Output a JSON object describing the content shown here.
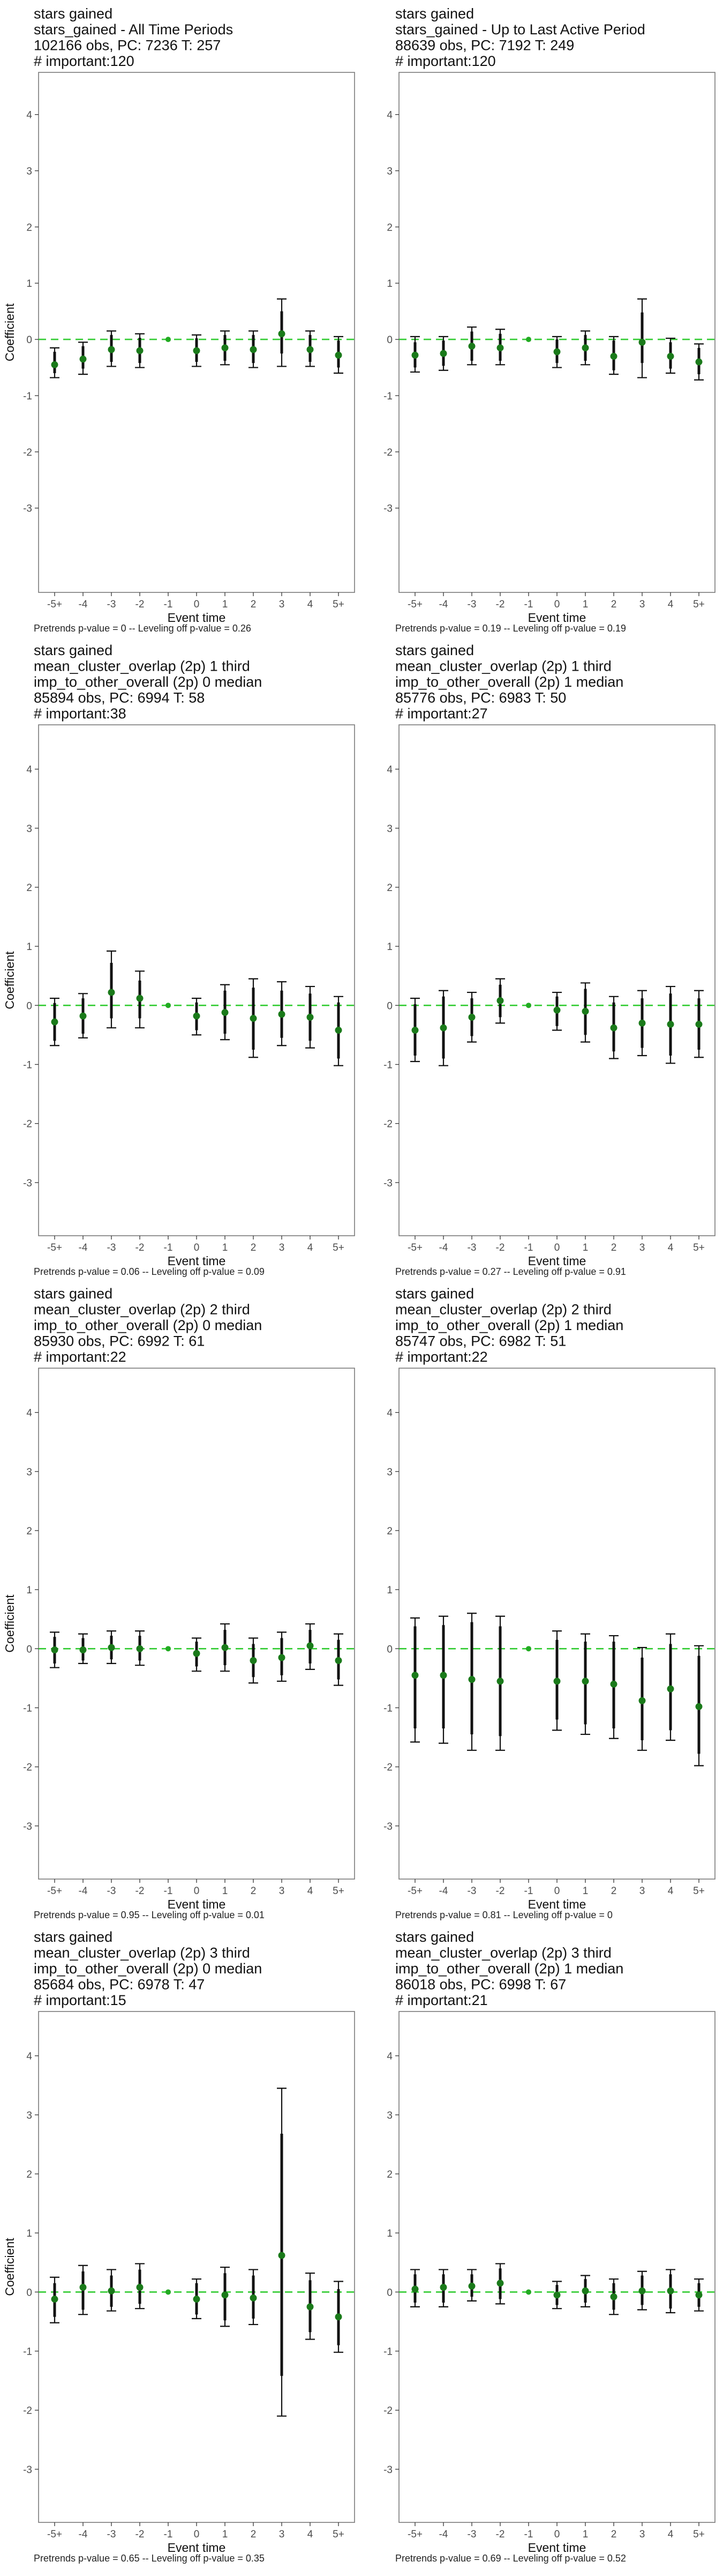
{
  "chart_data": [
    {
      "type": "errorbar",
      "title_lines": [
        "stars gained",
        "stars_gained - All Time Periods",
        "102166 obs, PC: 7236 T: 257",
        "# important:120"
      ],
      "caption": "Pretrends p-value = 0 -- Leveling off p-value = 0.26",
      "xlabel": "Event time",
      "ylabel": "Coefficient",
      "categories": [
        "-5+",
        "-4",
        "-3",
        "-2",
        "-1",
        "0",
        "1",
        "2",
        "3",
        "4",
        "5+"
      ],
      "ylim": [
        -4.5,
        4.75
      ],
      "yticks": [
        -3,
        -2,
        -1,
        0,
        1,
        2,
        3,
        4
      ],
      "series": [
        {
          "estimate": [
            -0.45,
            -0.35,
            -0.18,
            -0.2,
            0,
            -0.2,
            -0.15,
            -0.18,
            0.1,
            -0.18,
            -0.28
          ],
          "ci95_low": [
            -0.68,
            -0.62,
            -0.48,
            -0.5,
            0,
            -0.48,
            -0.45,
            -0.5,
            -0.48,
            -0.48,
            -0.6
          ],
          "ci95_high": [
            -0.15,
            -0.05,
            0.15,
            0.1,
            0,
            0.08,
            0.15,
            0.15,
            0.72,
            0.15,
            0.05
          ],
          "ci90_low": [
            -0.6,
            -0.52,
            -0.4,
            -0.42,
            0,
            -0.4,
            -0.38,
            -0.42,
            -0.25,
            -0.4,
            -0.5
          ],
          "ci90_high": [
            -0.22,
            -0.12,
            0.08,
            0.03,
            0,
            0.02,
            0.08,
            0.08,
            0.5,
            0.08,
            -0.02
          ]
        }
      ]
    },
    {
      "type": "errorbar",
      "title_lines": [
        "stars gained",
        "stars_gained - Up to Last Active Period",
        "88639 obs, PC: 7192 T: 249",
        "# important:120"
      ],
      "caption": "Pretrends p-value = 0.19 -- Leveling off p-value = 0.19",
      "xlabel": "Event time",
      "ylabel": "",
      "categories": [
        "-5+",
        "-4",
        "-3",
        "-2",
        "-1",
        "0",
        "1",
        "2",
        "3",
        "4",
        "5+"
      ],
      "ylim": [
        -4.5,
        4.75
      ],
      "yticks": [
        -3,
        -2,
        -1,
        0,
        1,
        2,
        3,
        4
      ],
      "series": [
        {
          "estimate": [
            -0.28,
            -0.25,
            -0.12,
            -0.15,
            0,
            -0.22,
            -0.15,
            -0.3,
            -0.05,
            -0.3,
            -0.4
          ],
          "ci95_low": [
            -0.58,
            -0.55,
            -0.45,
            -0.45,
            0,
            -0.5,
            -0.45,
            -0.62,
            -0.68,
            -0.6,
            -0.72
          ],
          "ci95_high": [
            0.05,
            0.05,
            0.22,
            0.18,
            0,
            0.05,
            0.15,
            0.05,
            0.72,
            0.02,
            -0.08
          ],
          "ci90_low": [
            -0.5,
            -0.47,
            -0.38,
            -0.38,
            0,
            -0.42,
            -0.38,
            -0.55,
            -0.42,
            -0.52,
            -0.62
          ],
          "ci90_high": [
            -0.05,
            -0.02,
            0.14,
            0.1,
            0,
            0,
            0.08,
            -0.02,
            0.48,
            -0.05,
            -0.15
          ]
        }
      ]
    },
    {
      "type": "errorbar",
      "title_lines": [
        "stars gained",
        "mean_cluster_overlap (2p) 1 third",
        "imp_to_other_overall (2p) 0 median",
        "85894 obs, PC: 6994 T: 58",
        "# important:38"
      ],
      "caption": "Pretrends p-value = 0.06 -- Leveling off p-value = 0.09",
      "xlabel": "Event time",
      "ylabel": "Coefficient",
      "categories": [
        "-5+",
        "-4",
        "-3",
        "-2",
        "-1",
        "0",
        "1",
        "2",
        "3",
        "4",
        "5+"
      ],
      "ylim": [
        -3.9,
        4.75
      ],
      "yticks": [
        -3,
        -2,
        -1,
        0,
        1,
        2,
        3,
        4
      ],
      "series": [
        {
          "estimate": [
            -0.28,
            -0.18,
            0.22,
            0.12,
            0,
            -0.18,
            -0.12,
            -0.22,
            -0.15,
            -0.2,
            -0.42
          ],
          "ci95_low": [
            -0.68,
            -0.55,
            -0.38,
            -0.38,
            0,
            -0.5,
            -0.58,
            -0.88,
            -0.68,
            -0.72,
            -1.02
          ],
          "ci95_high": [
            0.12,
            0.2,
            0.92,
            0.58,
            0,
            0.12,
            0.35,
            0.45,
            0.4,
            0.32,
            0.15
          ],
          "ci90_low": [
            -0.6,
            -0.48,
            -0.22,
            -0.22,
            0,
            -0.42,
            -0.48,
            -0.75,
            -0.55,
            -0.6,
            -0.9
          ],
          "ci90_high": [
            0.04,
            0.12,
            0.72,
            0.42,
            0,
            0.05,
            0.25,
            0.3,
            0.25,
            0.2,
            0.05
          ]
        }
      ]
    },
    {
      "type": "errorbar",
      "title_lines": [
        "stars gained",
        "mean_cluster_overlap (2p) 1 third",
        "imp_to_other_overall (2p) 1 median",
        "85776 obs, PC: 6983 T: 50",
        "# important:27"
      ],
      "caption": "Pretrends p-value = 0.27 -- Leveling off p-value = 0.91",
      "xlabel": "Event time",
      "ylabel": "",
      "categories": [
        "-5+",
        "-4",
        "-3",
        "-2",
        "-1",
        "0",
        "1",
        "2",
        "3",
        "4",
        "5+"
      ],
      "ylim": [
        -3.9,
        4.75
      ],
      "yticks": [
        -3,
        -2,
        -1,
        0,
        1,
        2,
        3,
        4
      ],
      "series": [
        {
          "estimate": [
            -0.42,
            -0.38,
            -0.2,
            0.08,
            0,
            -0.08,
            -0.1,
            -0.38,
            -0.3,
            -0.32,
            -0.32
          ],
          "ci95_low": [
            -0.95,
            -1.02,
            -0.62,
            -0.3,
            0,
            -0.42,
            -0.62,
            -0.9,
            -0.85,
            -0.98,
            -0.88
          ],
          "ci95_high": [
            0.12,
            0.25,
            0.22,
            0.45,
            0,
            0.22,
            0.38,
            0.15,
            0.25,
            0.32,
            0.25
          ],
          "ci90_low": [
            -0.85,
            -0.9,
            -0.52,
            -0.2,
            0,
            -0.35,
            -0.5,
            -0.78,
            -0.72,
            -0.85,
            -0.75
          ],
          "ci90_high": [
            0.02,
            0.15,
            0.12,
            0.35,
            0,
            0.15,
            0.28,
            0.05,
            0.12,
            0.2,
            0.12
          ]
        }
      ]
    },
    {
      "type": "errorbar",
      "title_lines": [
        "stars gained",
        "mean_cluster_overlap (2p) 2 third",
        "imp_to_other_overall (2p) 0 median",
        "85930 obs, PC: 6992 T: 61",
        "# important:22"
      ],
      "caption": "Pretrends p-value = 0.95 -- Leveling off p-value = 0.01",
      "xlabel": "Event time",
      "ylabel": "Coefficient",
      "categories": [
        "-5+",
        "-4",
        "-3",
        "-2",
        "-1",
        "0",
        "1",
        "2",
        "3",
        "4",
        "5+"
      ],
      "ylim": [
        -3.9,
        4.75
      ],
      "yticks": [
        -3,
        -2,
        -1,
        0,
        1,
        2,
        3,
        4
      ],
      "series": [
        {
          "estimate": [
            -0.02,
            -0.02,
            0.02,
            0.0,
            0,
            -0.08,
            0.02,
            -0.2,
            -0.15,
            0.05,
            -0.2
          ],
          "ci95_low": [
            -0.32,
            -0.25,
            -0.25,
            -0.28,
            0,
            -0.38,
            -0.38,
            -0.58,
            -0.55,
            -0.35,
            -0.62
          ],
          "ci95_high": [
            0.28,
            0.25,
            0.3,
            0.3,
            0,
            0.18,
            0.42,
            0.18,
            0.28,
            0.42,
            0.25
          ],
          "ci90_low": [
            -0.25,
            -0.2,
            -0.18,
            -0.2,
            0,
            -0.3,
            -0.28,
            -0.48,
            -0.45,
            -0.25,
            -0.52
          ],
          "ci90_high": [
            0.2,
            0.18,
            0.22,
            0.22,
            0,
            0.12,
            0.32,
            0.08,
            0.18,
            0.32,
            0.15
          ]
        }
      ]
    },
    {
      "type": "errorbar",
      "title_lines": [
        "stars gained",
        "mean_cluster_overlap (2p) 2 third",
        "imp_to_other_overall (2p) 1 median",
        "85747 obs, PC: 6982 T: 51",
        "# important:22"
      ],
      "caption": "Pretrends p-value = 0.81 -- Leveling off p-value = 0",
      "xlabel": "Event time",
      "ylabel": "",
      "categories": [
        "-5+",
        "-4",
        "-3",
        "-2",
        "-1",
        "0",
        "1",
        "2",
        "3",
        "4",
        "5+"
      ],
      "ylim": [
        -3.9,
        4.75
      ],
      "yticks": [
        -3,
        -2,
        -1,
        0,
        1,
        2,
        3,
        4
      ],
      "series": [
        {
          "estimate": [
            -0.45,
            -0.45,
            -0.52,
            -0.55,
            0,
            -0.55,
            -0.55,
            -0.6,
            -0.88,
            -0.68,
            -0.98
          ],
          "ci95_low": [
            -1.58,
            -1.6,
            -1.72,
            -1.72,
            0,
            -1.38,
            -1.45,
            -1.52,
            -1.72,
            -1.55,
            -1.98
          ],
          "ci95_high": [
            0.52,
            0.55,
            0.6,
            0.55,
            0,
            0.3,
            0.25,
            0.22,
            0.02,
            0.25,
            0.05
          ],
          "ci90_low": [
            -1.35,
            -1.35,
            -1.45,
            -1.48,
            0,
            -1.2,
            -1.28,
            -1.35,
            -1.55,
            -1.38,
            -1.78
          ],
          "ci90_high": [
            0.38,
            0.4,
            0.45,
            0.38,
            0,
            0.15,
            0.12,
            0.12,
            -0.15,
            0.08,
            -0.12
          ]
        }
      ]
    },
    {
      "type": "errorbar",
      "title_lines": [
        "stars gained",
        "mean_cluster_overlap (2p) 3 third",
        "imp_to_other_overall (2p) 0 median",
        "85684 obs, PC: 6978 T: 47",
        "# important:15"
      ],
      "caption": "Pretrends p-value = 0.65 -- Leveling off p-value = 0.35",
      "xlabel": "Event time",
      "ylabel": "Coefficient",
      "categories": [
        "-5+",
        "-4",
        "-3",
        "-2",
        "-1",
        "0",
        "1",
        "2",
        "3",
        "4",
        "5+"
      ],
      "ylim": [
        -3.9,
        4.75
      ],
      "yticks": [
        -3,
        -2,
        -1,
        0,
        1,
        2,
        3,
        4
      ],
      "series": [
        {
          "estimate": [
            -0.12,
            0.08,
            0.02,
            0.08,
            0,
            -0.12,
            -0.05,
            -0.1,
            0.62,
            -0.25,
            -0.42
          ],
          "ci95_low": [
            -0.52,
            -0.38,
            -0.32,
            -0.28,
            0,
            -0.45,
            -0.58,
            -0.55,
            -2.1,
            -0.8,
            -1.02
          ],
          "ci95_high": [
            0.25,
            0.45,
            0.38,
            0.48,
            0,
            0.22,
            0.42,
            0.38,
            3.45,
            0.32,
            0.18
          ],
          "ci90_low": [
            -0.42,
            -0.3,
            -0.25,
            -0.2,
            0,
            -0.38,
            -0.48,
            -0.45,
            -1.42,
            -0.68,
            -0.9
          ],
          "ci90_high": [
            0.15,
            0.35,
            0.28,
            0.38,
            0,
            0.15,
            0.32,
            0.28,
            2.68,
            0.2,
            0.05
          ]
        }
      ]
    },
    {
      "type": "errorbar",
      "title_lines": [
        "stars gained",
        "mean_cluster_overlap (2p) 3 third",
        "imp_to_other_overall (2p) 1 median",
        "86018 obs, PC: 6998 T: 67",
        "# important:21"
      ],
      "caption": "Pretrends p-value = 0.69 -- Leveling off p-value = 0.52",
      "xlabel": "Event time",
      "ylabel": "",
      "categories": [
        "-5+",
        "-4",
        "-3",
        "-2",
        "-1",
        "0",
        "1",
        "2",
        "3",
        "4",
        "5+"
      ],
      "ylim": [
        -3.9,
        4.75
      ],
      "yticks": [
        -3,
        -2,
        -1,
        0,
        1,
        2,
        3,
        4
      ],
      "series": [
        {
          "estimate": [
            0.05,
            0.08,
            0.1,
            0.15,
            0,
            -0.05,
            0.02,
            -0.08,
            0.02,
            0.02,
            -0.05
          ],
          "ci95_low": [
            -0.25,
            -0.25,
            -0.15,
            -0.2,
            0,
            -0.28,
            -0.25,
            -0.38,
            -0.3,
            -0.35,
            -0.32
          ],
          "ci95_high": [
            0.38,
            0.38,
            0.38,
            0.48,
            0,
            0.18,
            0.28,
            0.22,
            0.35,
            0.38,
            0.22
          ],
          "ci90_low": [
            -0.18,
            -0.18,
            -0.08,
            -0.12,
            0,
            -0.22,
            -0.18,
            -0.3,
            -0.22,
            -0.28,
            -0.25
          ],
          "ci90_high": [
            0.3,
            0.3,
            0.3,
            0.4,
            0,
            0.12,
            0.22,
            0.15,
            0.28,
            0.3,
            0.15
          ]
        }
      ]
    }
  ],
  "colors": {
    "zero_line": "#33cc33",
    "point": "#1a7a1a",
    "point_reference": "#22aa22",
    "ci": "#111111",
    "frame": "#7a7a7a",
    "tick_text": "#4d4d4d",
    "background": "#ffffff"
  }
}
